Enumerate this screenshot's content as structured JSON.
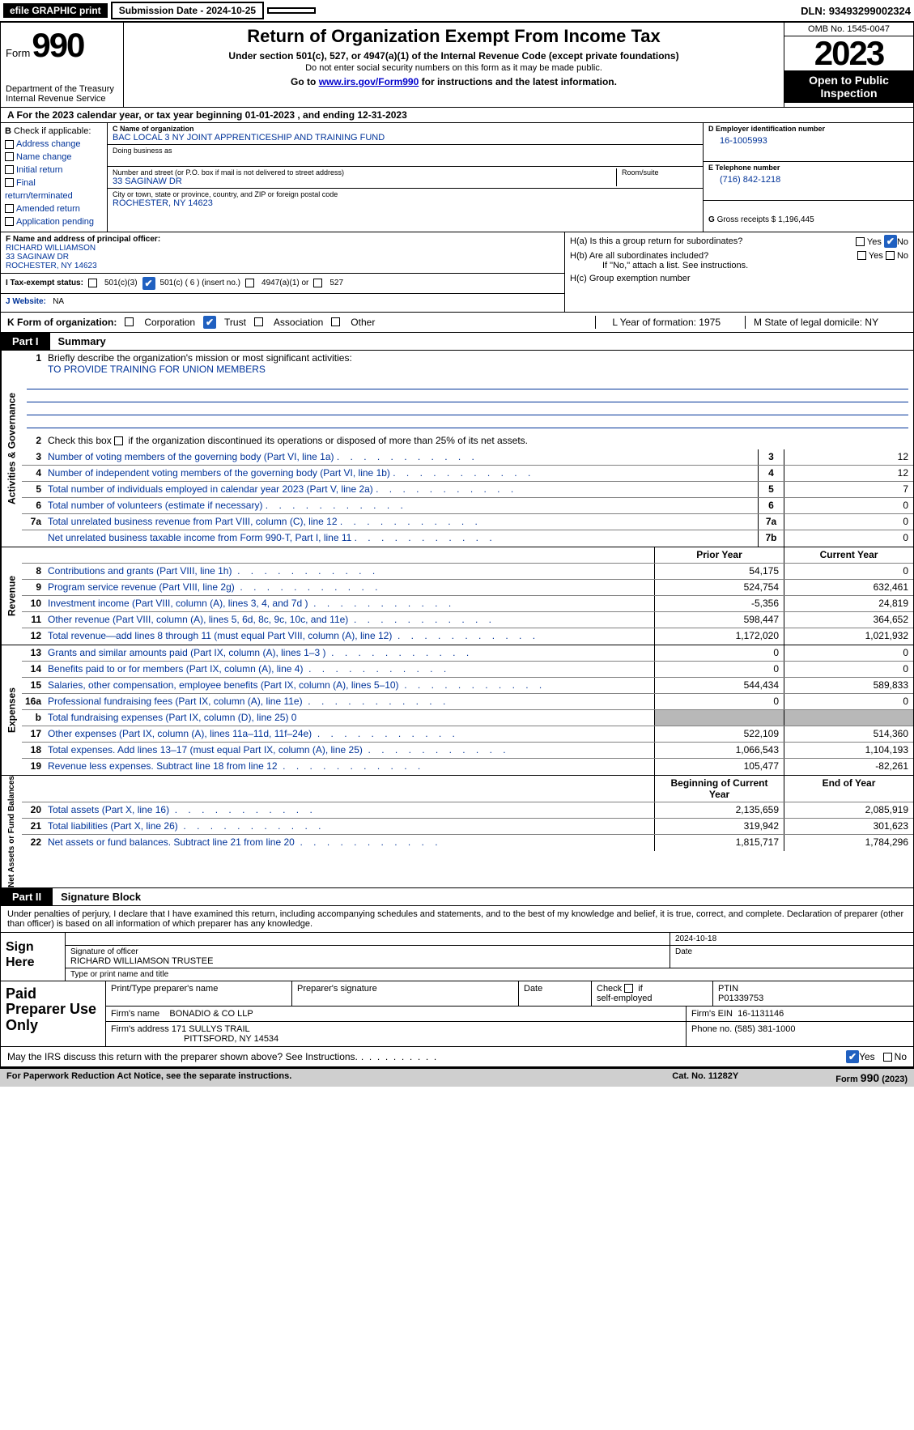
{
  "topbar": {
    "efile": "efile GRAPHIC print",
    "submission": "Submission Date - 2024-10-25",
    "dln_label": "DLN:",
    "dln": "93493299002324"
  },
  "header": {
    "form_word": "Form",
    "form_num": "990",
    "dept": "Department of the Treasury\nInternal Revenue Service",
    "title": "Return of Organization Exempt From Income Tax",
    "sub1": "Under section 501(c), 527, or 4947(a)(1) of the Internal Revenue Code (except private foundations)",
    "sub2": "Do not enter social security numbers on this form as it may be made public.",
    "sub3_pre": "Go to ",
    "sub3_link": "www.irs.gov/Form990",
    "sub3_post": " for instructions and the latest information.",
    "omb": "OMB No. 1545-0047",
    "year": "2023",
    "otp": "Open to Public Inspection"
  },
  "row_a": "A  For the 2023 calendar year, or tax year beginning 01-01-2023    , and ending 12-31-2023",
  "col_b": {
    "hdr": "B",
    "check": "Check if applicable:",
    "items": [
      "Address change",
      "Name change",
      "Initial return",
      "Final return/terminated",
      "Amended return",
      "Application pending"
    ]
  },
  "col_c": {
    "name_lbl": "C Name of organization",
    "name": "BAC LOCAL 3 NY JOINT APPRENTICESHIP AND TRAINING FUND",
    "dba_lbl": "Doing business as",
    "addr_lbl": "Number and street (or P.O. box if mail is not delivered to street address)",
    "room_lbl": "Room/suite",
    "addr": "33 SAGINAW DR",
    "city_lbl": "City or town, state or province, country, and ZIP or foreign postal code",
    "city": "ROCHESTER, NY  14623"
  },
  "col_d": {
    "ein_lbl": "D Employer identification number",
    "ein": "16-1005993",
    "tel_lbl": "E Telephone number",
    "tel": "(716) 842-1218",
    "gross_lbl": "G",
    "gross": "Gross receipts $ 1,196,445"
  },
  "officer": {
    "lbl": "F  Name and address of principal officer:",
    "name": "RICHARD WILLIAMSON",
    "addr1": "33 SAGINAW DR",
    "addr2": "ROCHESTER, NY  14623"
  },
  "h": {
    "ha": "H(a)  Is this a group return for subordinates?",
    "hb": "H(b)  Are all subordinates included?",
    "hb_note": "If \"No,\" attach a list. See instructions.",
    "hc": "H(c)  Group exemption number",
    "yes": "Yes",
    "no": "No"
  },
  "row_i": {
    "lbl": "I   Tax-exempt status:",
    "c3": "501(c)(3)",
    "c": "501(c) ( 6 ) (insert no.)",
    "a1": "4947(a)(1) or",
    "s527": "527"
  },
  "row_j": {
    "lbl": "J   Website:",
    "val": "NA"
  },
  "row_k": {
    "lbl": "K Form of organization:",
    "corp": "Corporation",
    "trust": "Trust",
    "assoc": "Association",
    "other": "Other",
    "l": "L Year of formation: 1975",
    "m": "M State of legal domicile: NY"
  },
  "part1": {
    "tag": "Part I",
    "title": "Summary"
  },
  "summary": {
    "sec1_label": "Activities & Governance",
    "line1": "Briefly describe the organization's mission or most significant activities:",
    "mission": "TO PROVIDE TRAINING FOR UNION MEMBERS",
    "line2": "Check this box       if the organization discontinued its operations or disposed of more than 25% of its net assets.",
    "rows_gov": [
      {
        "n": "3",
        "t": "Number of voting members of the governing body (Part VI, line 1a)",
        "b": "3",
        "v": "12"
      },
      {
        "n": "4",
        "t": "Number of independent voting members of the governing body (Part VI, line 1b)",
        "b": "4",
        "v": "12"
      },
      {
        "n": "5",
        "t": "Total number of individuals employed in calendar year 2023 (Part V, line 2a)",
        "b": "5",
        "v": "7"
      },
      {
        "n": "6",
        "t": "Total number of volunteers (estimate if necessary)",
        "b": "6",
        "v": "0"
      },
      {
        "n": "7a",
        "t": "Total unrelated business revenue from Part VIII, column (C), line 12",
        "b": "7a",
        "v": "0"
      },
      {
        "n": "",
        "t": "Net unrelated business taxable income from Form 990-T, Part I, line 11",
        "b": "7b",
        "v": "0"
      }
    ],
    "col_hdr_prior": "Prior Year",
    "col_hdr_curr": "Current Year",
    "sec2_label": "Revenue",
    "rows_rev": [
      {
        "n": "8",
        "t": "Contributions and grants (Part VIII, line 1h)",
        "p": "54,175",
        "c": "0"
      },
      {
        "n": "9",
        "t": "Program service revenue (Part VIII, line 2g)",
        "p": "524,754",
        "c": "632,461"
      },
      {
        "n": "10",
        "t": "Investment income (Part VIII, column (A), lines 3, 4, and 7d )",
        "p": "-5,356",
        "c": "24,819"
      },
      {
        "n": "11",
        "t": "Other revenue (Part VIII, column (A), lines 5, 6d, 8c, 9c, 10c, and 11e)",
        "p": "598,447",
        "c": "364,652"
      },
      {
        "n": "12",
        "t": "Total revenue—add lines 8 through 11 (must equal Part VIII, column (A), line 12)",
        "p": "1,172,020",
        "c": "1,021,932"
      }
    ],
    "sec3_label": "Expenses",
    "rows_exp": [
      {
        "n": "13",
        "t": "Grants and similar amounts paid (Part IX, column (A), lines 1–3 )",
        "p": "0",
        "c": "0"
      },
      {
        "n": "14",
        "t": "Benefits paid to or for members (Part IX, column (A), line 4)",
        "p": "0",
        "c": "0"
      },
      {
        "n": "15",
        "t": "Salaries, other compensation, employee benefits (Part IX, column (A), lines 5–10)",
        "p": "544,434",
        "c": "589,833"
      },
      {
        "n": "16a",
        "t": "Professional fundraising fees (Part IX, column (A), line 11e)",
        "p": "0",
        "c": "0"
      },
      {
        "n": "b",
        "t": "Total fundraising expenses (Part IX, column (D), line 25) 0",
        "p": "",
        "c": "",
        "shade": true
      },
      {
        "n": "17",
        "t": "Other expenses (Part IX, column (A), lines 11a–11d, 11f–24e)",
        "p": "522,109",
        "c": "514,360"
      },
      {
        "n": "18",
        "t": "Total expenses. Add lines 13–17 (must equal Part IX, column (A), line 25)",
        "p": "1,066,543",
        "c": "1,104,193"
      },
      {
        "n": "19",
        "t": "Revenue less expenses. Subtract line 18 from line 12",
        "p": "105,477",
        "c": "-82,261"
      }
    ],
    "col_hdr_beg": "Beginning of Current Year",
    "col_hdr_end": "End of Year",
    "sec4_label": "Net Assets or Fund Balances",
    "rows_net": [
      {
        "n": "20",
        "t": "Total assets (Part X, line 16)",
        "p": "2,135,659",
        "c": "2,085,919"
      },
      {
        "n": "21",
        "t": "Total liabilities (Part X, line 26)",
        "p": "319,942",
        "c": "301,623"
      },
      {
        "n": "22",
        "t": "Net assets or fund balances. Subtract line 21 from line 20",
        "p": "1,815,717",
        "c": "1,784,296"
      }
    ]
  },
  "part2": {
    "tag": "Part II",
    "title": "Signature Block"
  },
  "sig": {
    "decl": "Under penalties of perjury, I declare that I have examined this return, including accompanying schedules and statements, and to the best of my knowledge and belief, it is true, correct, and complete. Declaration of preparer (other than officer) is based on all information of which preparer has any knowledge.",
    "sign_here": "Sign Here",
    "date": "2024-10-18",
    "sig_off_lbl": "Signature of officer",
    "sig_off": "RICHARD WILLIAMSON  TRUSTEE",
    "date_lbl": "Date",
    "type_lbl": "Type or print name and title"
  },
  "prep": {
    "title": "Paid Preparer Use Only",
    "name_lbl": "Print/Type preparer's name",
    "sig_lbl": "Preparer's signature",
    "date_lbl": "Date",
    "check_lbl": "Check        if self-employed",
    "ptin_lbl": "PTIN",
    "ptin": "P01339753",
    "firm_name_lbl": "Firm's name",
    "firm_name": "BONADIO & CO LLP",
    "firm_ein_lbl": "Firm's EIN",
    "firm_ein": "16-1131146",
    "firm_addr_lbl": "Firm's address",
    "firm_addr1": "171 SULLYS TRAIL",
    "firm_addr2": "PITTSFORD, NY  14534",
    "phone_lbl": "Phone no.",
    "phone": "(585) 381-1000"
  },
  "discuss": {
    "q": "May the IRS discuss this return with the preparer shown above? See Instructions.",
    "yes": "Yes",
    "no": "No"
  },
  "footer": {
    "left": "For Paperwork Reduction Act Notice, see the separate instructions.",
    "mid": "Cat. No. 11282Y",
    "right_pre": "Form ",
    "right_num": "990",
    "right_post": " (2023)"
  }
}
